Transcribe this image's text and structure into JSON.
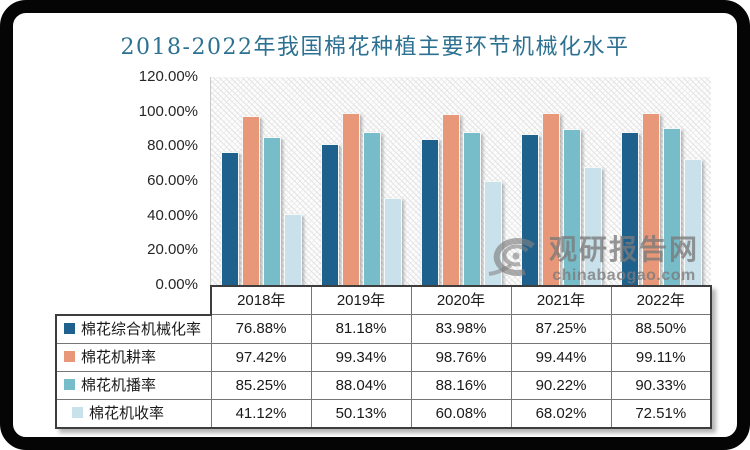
{
  "frame": {
    "border_color": "#050505",
    "background": "#ffffff"
  },
  "watermark": {
    "site_name": "观研报告网",
    "domain": "chinabaogao.com",
    "logo": "swirl-logo-icon"
  },
  "chart_data": {
    "type": "bar",
    "title": "2018-2022年我国棉花种植主要环节机械化水平",
    "title_color": "#2C7191",
    "categories": [
      "2018年",
      "2019年",
      "2020年",
      "2021年",
      "2022年"
    ],
    "series": [
      {
        "name": "棉花综合机械化率",
        "color": "#1F618D",
        "values": [
          76.88,
          81.18,
          83.98,
          87.25,
          88.5
        ]
      },
      {
        "name": "棉花机耕率",
        "color": "#E89878",
        "values": [
          97.42,
          99.34,
          98.76,
          99.44,
          99.11
        ]
      },
      {
        "name": "棉花机播率",
        "color": "#77BDC9",
        "values": [
          85.25,
          88.04,
          88.16,
          90.22,
          90.33
        ]
      },
      {
        "name": "棉花机收率",
        "color": "#C9E1EA",
        "values": [
          41.12,
          50.13,
          60.08,
          68.02,
          72.51
        ]
      }
    ],
    "y_ticks": [
      "120.00%",
      "100.00%",
      "80.00%",
      "60.00%",
      "40.00%",
      "20.00%",
      "0.00%"
    ],
    "ylim": [
      0,
      120
    ],
    "value_suffix": "%",
    "grid": false,
    "plot_background": "diagonal-hatch",
    "legend_position": "table-left"
  }
}
